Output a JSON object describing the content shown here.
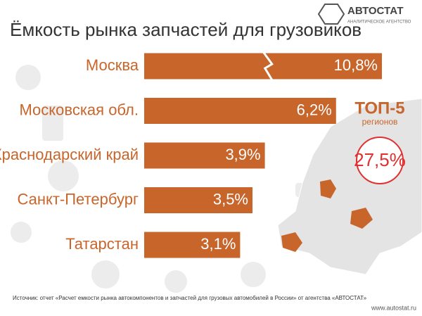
{
  "chart_data": {
    "type": "bar",
    "orientation": "horizontal",
    "title": "Ёмкость рынка запчастей для грузовиков",
    "categories": [
      "Москва",
      "Московская обл.",
      "Краснодарский край",
      "Санкт-Петербург",
      "Татарстан"
    ],
    "values": [
      10.8,
      6.2,
      3.9,
      3.5,
      3.1
    ],
    "value_labels": [
      "10,8%",
      "6,2%",
      "3,9%",
      "3,5%",
      "3,1%"
    ],
    "color": "#c8652b",
    "annotations": {
      "top_title": "ТОП-5",
      "top_subtitle": "регионов",
      "total_label": "27,5%"
    },
    "source": "Источник: отчет «Расчет емкости рынка автокомпонентов и запчастей для грузовых автомобилей в России» от агентства «АВТОСТАТ»"
  },
  "logo": {
    "name": "АВТОСТАТ",
    "tagline": "АНАЛИТИЧЕСКОЕ АГЕНТСТВО",
    "url": "www.autostat.ru"
  }
}
